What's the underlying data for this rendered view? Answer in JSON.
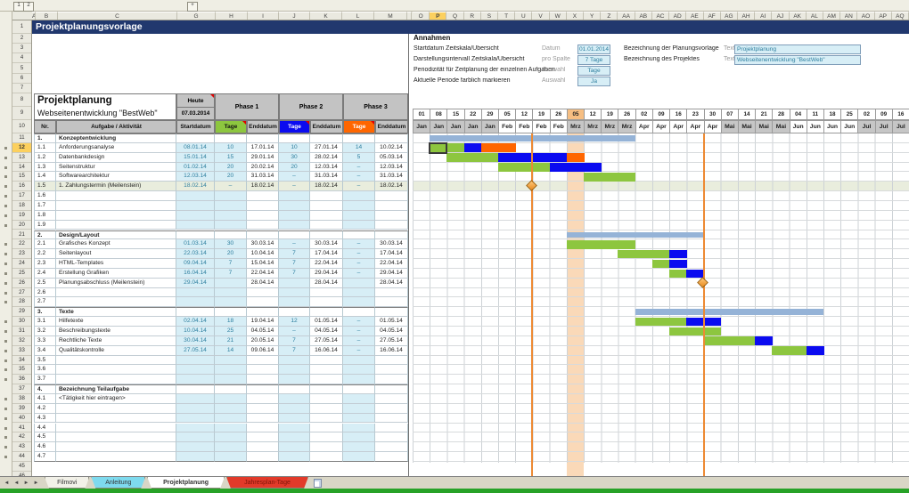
{
  "title": "Projektplanungsvorlage",
  "colors": {
    "title_bar": "#21386E",
    "header_gray": "#C3C3C3",
    "phase1": "#8DC63F",
    "phase2": "#0B0BF0",
    "phase3": "#FF6600",
    "input_bg": "#D7EEF6",
    "input_text": "#2E7F9F",
    "summary_bar": "#95B3D7",
    "current_band": "#FAD9B8",
    "current_day_bg": "#F6BE82",
    "milestone_row_bg": "#E9EDDD",
    "milestone_line": "#ED8A33",
    "selected_header_bg": "#FCD05E",
    "month_gray": "#C6C6C6",
    "bottom_bar": "#28A228"
  },
  "outline": {
    "level1": "1",
    "level2": "2",
    "expand": "+"
  },
  "columns": {
    "left": [
      "A",
      "B",
      "C",
      "G",
      "H",
      "I",
      "J",
      "K",
      "L",
      "M"
    ],
    "right_spacer": "N",
    "right": [
      "O",
      "P",
      "Q",
      "R",
      "S",
      "T",
      "U",
      "V",
      "W",
      "X",
      "Y",
      "Z",
      "AA",
      "AB",
      "AC",
      "AD",
      "AE",
      "AF",
      "AG",
      "AH",
      "AI",
      "AJ",
      "AK",
      "AL",
      "AM",
      "AN",
      "AO",
      "AP",
      "AQ"
    ],
    "selected": "P"
  },
  "gutter": {
    "first": 1,
    "last": 46,
    "selected_row": 12
  },
  "assumptions": {
    "heading": "Annahmen",
    "rows": [
      {
        "label": "Startdatum Zeitskala/Übersicht",
        "type": "Datum",
        "value": "01.01.2014"
      },
      {
        "label": "Darstellungsintervall Zeitskala/Übersicht",
        "type": "pro Spalte",
        "value": "7 Tage"
      },
      {
        "label": "Periodizität für Zeitplanung der einzelnen Aufgaben",
        "type": "Auswahl",
        "value": "Tage"
      },
      {
        "label": "Aktuelle Periode farblich markieren",
        "type": "Auswahl",
        "value": "Ja"
      }
    ],
    "right_rows": [
      {
        "label": "Bezeichnung der Planungsvorlage",
        "type": "Text:",
        "value": "Projektplanung"
      },
      {
        "label": "Bezeichnung des Projektes",
        "type": "Text:",
        "value": "Webseitenentwicklung \"BestWeb\""
      }
    ]
  },
  "table": {
    "title": "Projektplanung",
    "subtitle": "Webseitenentwicklung \"BestWeb\"",
    "today_label": "Heute",
    "today_value": "07.03.2014",
    "phases": [
      "Phase 1",
      "Phase 2",
      "Phase 3"
    ],
    "headers": [
      "Nr.",
      "Aufgabe / Aktivität",
      "Startdatum",
      "Tage",
      "Enddatum",
      "Tage",
      "Enddatum",
      "Tage",
      "Enddatum"
    ]
  },
  "rows": [
    {
      "n": 11,
      "nr": "1.",
      "task": "Konzeptentwicklung",
      "section": true,
      "summary": [
        1,
        12
      ]
    },
    {
      "n": 12,
      "nr": "1.1",
      "task": "Anforderungsanalyse",
      "c": [
        "08.01.14",
        "10",
        "17.01.14",
        "10",
        "27.01.14",
        "14",
        "10.02.14"
      ],
      "p1": [
        1,
        2
      ],
      "p2": [
        3
      ],
      "p3": [
        4,
        5
      ]
    },
    {
      "n": 13,
      "nr": "1.2",
      "task": "Datenbankdesign",
      "c": [
        "15.01.14",
        "15",
        "29.01.14",
        "30",
        "28.02.14",
        "5",
        "05.03.14"
      ],
      "p1": [
        2,
        3,
        4
      ],
      "p2": [
        5,
        6,
        7,
        8
      ],
      "p3": [
        9
      ]
    },
    {
      "n": 14,
      "nr": "1.3",
      "task": "Seitenstruktur",
      "c": [
        "01.02.14",
        "20",
        "20.02.14",
        "20",
        "12.03.14",
        "–",
        "12.03.14"
      ],
      "p1": [
        5,
        6,
        7
      ],
      "p2": [
        8,
        9,
        10
      ]
    },
    {
      "n": 15,
      "nr": "1.4",
      "task": "Softwarearchitektur",
      "c": [
        "12.03.14",
        "20",
        "31.03.14",
        "–",
        "31.03.14",
        "–",
        "31.03.14"
      ],
      "p1": [
        10,
        11,
        12
      ]
    },
    {
      "n": 16,
      "nr": "1.5",
      "task": "1. Zahlungstermin (Meilenstein)",
      "c": [
        "18.02.14",
        "–",
        "18.02.14",
        "–",
        "18.02.14",
        "–",
        "18.02.14"
      ],
      "milestone": 0,
      "hl": true
    },
    {
      "n": 17,
      "nr": "1.6",
      "c": []
    },
    {
      "n": 18,
      "nr": "1.7",
      "c": []
    },
    {
      "n": 19,
      "nr": "1.8",
      "c": []
    },
    {
      "n": 20,
      "nr": "1.9",
      "c": []
    },
    {
      "n": 21,
      "nr": "2.",
      "task": "Design/Layout",
      "section": true,
      "summary": [
        9,
        16
      ]
    },
    {
      "n": 22,
      "nr": "2.1",
      "task": "Grafisches Konzept",
      "c": [
        "01.03.14",
        "30",
        "30.03.14",
        "–",
        "30.03.14",
        "–",
        "30.03.14"
      ],
      "p1": [
        9,
        10,
        11,
        12
      ]
    },
    {
      "n": 23,
      "nr": "2.2",
      "task": "Seitenlayout",
      "c": [
        "22.03.14",
        "20",
        "10.04.14",
        "7",
        "17.04.14",
        "–",
        "17.04.14"
      ],
      "p1": [
        12,
        13,
        14
      ],
      "p2": [
        15
      ]
    },
    {
      "n": 24,
      "nr": "2.3",
      "task": "HTML-Templates",
      "c": [
        "09.04.14",
        "7",
        "15.04.14",
        "7",
        "22.04.14",
        "–",
        "22.04.14"
      ],
      "p1": [
        14
      ],
      "p2": [
        15
      ]
    },
    {
      "n": 25,
      "nr": "2.4",
      "task": "Erstellung Grafiken",
      "c": [
        "16.04.14",
        "7",
        "22.04.14",
        "7",
        "29.04.14",
        "–",
        "29.04.14"
      ],
      "p1": [
        15
      ],
      "p2": [
        16
      ]
    },
    {
      "n": 26,
      "nr": "2.5",
      "task": "Planungsabschluss (Meilenstein)",
      "c": [
        "29.04.14",
        "",
        "28.04.14",
        "",
        "28.04.14",
        "",
        "28.04.14"
      ],
      "milestone": 1
    },
    {
      "n": 27,
      "nr": "2.6",
      "c": []
    },
    {
      "n": 28,
      "nr": "2.7",
      "c": []
    },
    {
      "n": 29,
      "nr": "3.",
      "task": "Texte",
      "section": true,
      "summary": [
        13,
        23
      ]
    },
    {
      "n": 30,
      "nr": "3.1",
      "task": "Hilfetexte",
      "c": [
        "02.04.14",
        "18",
        "19.04.14",
        "12",
        "01.05.14",
        "–",
        "01.05.14"
      ],
      "p1": [
        13,
        14,
        15
      ],
      "p2": [
        16,
        17
      ]
    },
    {
      "n": 31,
      "nr": "3.2",
      "task": "Beschreibungstexte",
      "c": [
        "10.04.14",
        "25",
        "04.05.14",
        "–",
        "04.05.14",
        "–",
        "04.05.14"
      ],
      "p1": [
        15,
        16,
        17
      ]
    },
    {
      "n": 32,
      "nr": "3.3",
      "task": "Rechtliche Texte",
      "c": [
        "30.04.14",
        "21",
        "20.05.14",
        "7",
        "27.05.14",
        "–",
        "27.05.14"
      ],
      "p1": [
        17,
        18,
        19
      ],
      "p2": [
        20
      ]
    },
    {
      "n": 33,
      "nr": "3.4",
      "task": "Qualitätskontrolle",
      "c": [
        "27.05.14",
        "14",
        "09.06.14",
        "7",
        "16.06.14",
        "–",
        "16.06.14"
      ],
      "p1": [
        21,
        22
      ],
      "p2": [
        23
      ]
    },
    {
      "n": 34,
      "nr": "3.5",
      "c": []
    },
    {
      "n": 35,
      "nr": "3.6",
      "c": []
    },
    {
      "n": 36,
      "nr": "3.7",
      "c": []
    },
    {
      "n": 37,
      "nr": "4.",
      "task": "Bezeichnung Teilaufgabe",
      "section": true
    },
    {
      "n": 38,
      "nr": "4.1",
      "task": "<Tätigkeit hier eintragen>",
      "c": []
    },
    {
      "n": 39,
      "nr": "4.2",
      "c": []
    },
    {
      "n": 40,
      "nr": "4.3",
      "c": []
    },
    {
      "n": 41,
      "nr": "4.4",
      "c": []
    },
    {
      "n": 42,
      "nr": "4.5",
      "c": []
    },
    {
      "n": 43,
      "nr": "4.6",
      "c": []
    },
    {
      "n": 44,
      "nr": "4.7",
      "c": []
    }
  ],
  "gantt": {
    "days": [
      "01",
      "08",
      "15",
      "22",
      "29",
      "05",
      "12",
      "19",
      "26",
      "05",
      "12",
      "19",
      "26",
      "02",
      "09",
      "16",
      "23",
      "30",
      "07",
      "14",
      "21",
      "28",
      "04",
      "11",
      "18",
      "25",
      "02",
      "09",
      "16"
    ],
    "months": [
      "Jan",
      "Jan",
      "Jan",
      "Jan",
      "Jan",
      "Feb",
      "Feb",
      "Feb",
      "Feb",
      "Mrz",
      "Mrz",
      "Mrz",
      "Mrz",
      "Apr",
      "Apr",
      "Apr",
      "Apr",
      "Apr",
      "Mai",
      "Mai",
      "Mai",
      "Mai",
      "Jun",
      "Jun",
      "Jun",
      "Jun",
      "Jul",
      "Jul",
      "Jul"
    ],
    "gray_months": [
      "Jan",
      "Mrz",
      "Mai",
      "Jul"
    ],
    "current_col": 9,
    "selected_cell": {
      "row": 12,
      "col": 1
    },
    "milestones": [
      {
        "row": 16,
        "col": 7
      },
      {
        "row": 26,
        "col": 17
      }
    ]
  },
  "tabs": {
    "nav_first": "◄",
    "nav_prev": "◄",
    "nav_next": "►",
    "nav_last": "►",
    "items": [
      {
        "label": "Filmovi"
      },
      {
        "label": "Anleitung",
        "bg": "#7EDAEE"
      },
      {
        "label": "Projektplanung",
        "active": true
      },
      {
        "label": "Jahresplan-Tage",
        "bg": "#E23A2A",
        "fg": "#7E1408"
      }
    ]
  }
}
